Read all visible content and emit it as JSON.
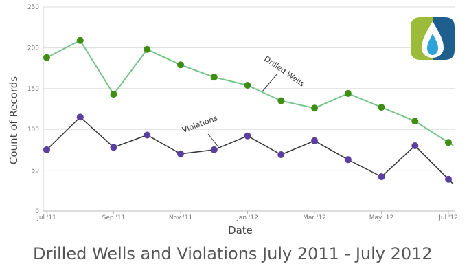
{
  "chart_data": {
    "type": "line",
    "title": "Drilled Wells and Violations July 2011 - July 2012",
    "xlabel": "Date",
    "ylabel": "Count of Records",
    "ylim": [
      0,
      250
    ],
    "yticks": [
      0,
      50,
      100,
      150,
      200,
      250
    ],
    "x": [
      "2011-07",
      "2011-08",
      "2011-09",
      "2011-10",
      "2011-11",
      "2011-12",
      "2012-01",
      "2012-02",
      "2012-03",
      "2012-04",
      "2012-05",
      "2012-06",
      "2012-07"
    ],
    "xtick_labels": [
      {
        "month_index": 0,
        "label": "Jul '11"
      },
      {
        "month_index": 2,
        "label": "Sep '11"
      },
      {
        "month_index": 4,
        "label": "Nov '11"
      },
      {
        "month_index": 6,
        "label": "Jan '12"
      },
      {
        "month_index": 8,
        "label": "Mar '12"
      },
      {
        "month_index": 10,
        "label": "May '12"
      },
      {
        "month_index": 12,
        "label": "Jul '12"
      }
    ],
    "grid": true,
    "series": [
      {
        "name": "Drilled Wells",
        "line_color": "#77c48a",
        "marker_color": "#3e8e14",
        "values": [
          188,
          209,
          143,
          198,
          179,
          164,
          154,
          135,
          126,
          144,
          127,
          110,
          84
        ]
      },
      {
        "name": "Violations",
        "line_color": "#333333",
        "marker_color": "#5b3fa0",
        "values": [
          75,
          115,
          78,
          93,
          70,
          75,
          92,
          69,
          86,
          63,
          42,
          80,
          39
        ]
      }
    ]
  },
  "logo": {
    "icon": "gas-flame-logo-icon",
    "colors": [
      "#9cbb3b",
      "#1f5f8e",
      "#2ea3d8"
    ]
  }
}
